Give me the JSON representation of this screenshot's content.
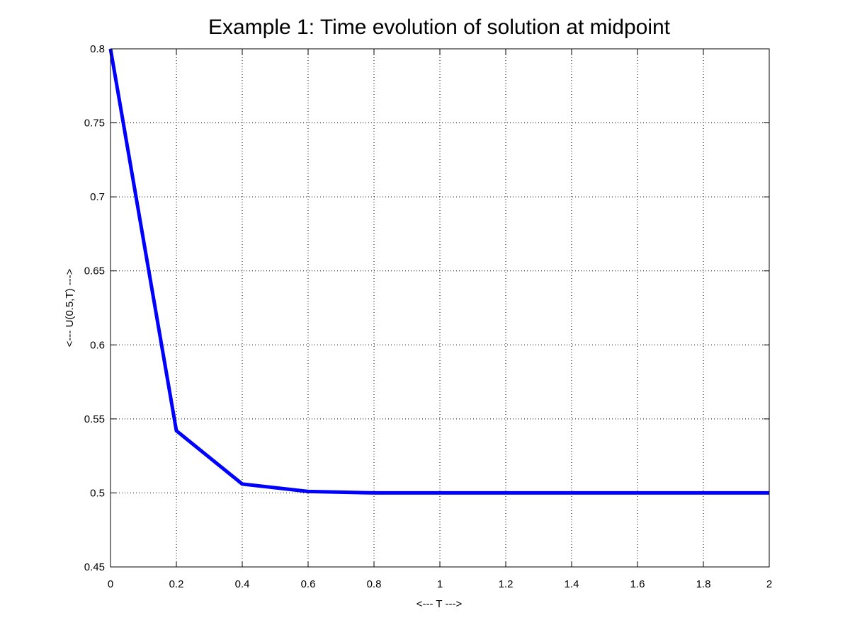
{
  "chart_data": {
    "type": "line",
    "title": "Example 1: Time evolution of solution at midpoint",
    "xlabel": "<--- T --->",
    "ylabel": "<--- U(0.5,T) --->",
    "xlim": [
      0,
      2
    ],
    "ylim": [
      0.45,
      0.8
    ],
    "xticks": [
      0,
      0.2,
      0.4,
      0.6,
      0.8,
      1,
      1.2,
      1.4,
      1.6,
      1.8,
      2
    ],
    "xtick_labels": [
      "0",
      "0.2",
      "0.4",
      "0.6",
      "0.8",
      "1",
      "1.2",
      "1.4",
      "1.6",
      "1.8",
      "2"
    ],
    "yticks": [
      0.45,
      0.5,
      0.55,
      0.6,
      0.65,
      0.7,
      0.75,
      0.8
    ],
    "ytick_labels": [
      "0.45",
      "0.5",
      "0.55",
      "0.6",
      "0.65",
      "0.7",
      "0.75",
      "0.8"
    ],
    "grid": true,
    "grid_style": "dotted",
    "series": [
      {
        "color": "#0000ff",
        "x": [
          0,
          0.2,
          0.4,
          0.6,
          0.8,
          1.0,
          1.2,
          1.4,
          1.6,
          1.8,
          2.0
        ],
        "y": [
          0.8,
          0.542,
          0.506,
          0.501,
          0.5,
          0.5,
          0.5,
          0.5,
          0.5,
          0.5,
          0.5
        ]
      }
    ]
  }
}
